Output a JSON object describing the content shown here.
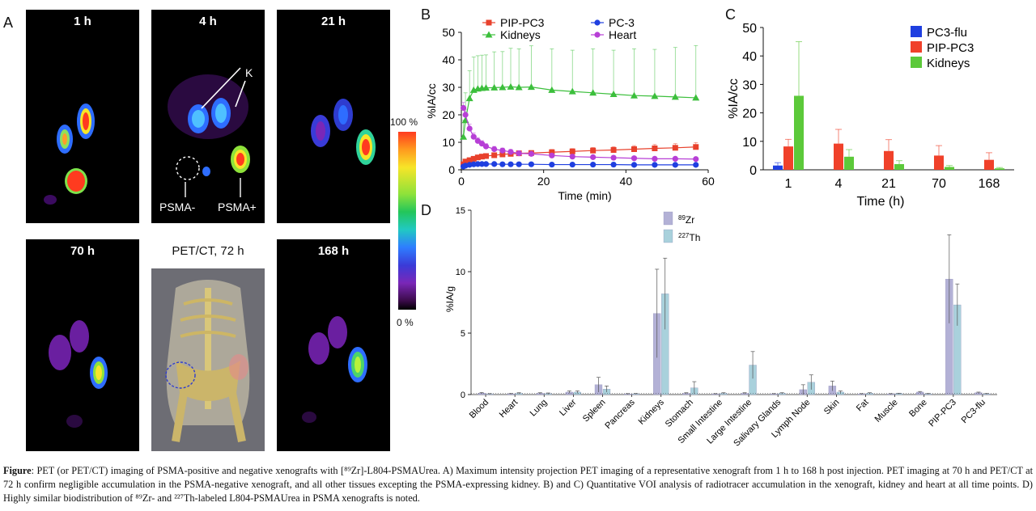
{
  "panel_letters": {
    "a": "A",
    "b": "B",
    "c": "C",
    "d": "D"
  },
  "panel_a": {
    "tiles": [
      "1 h",
      "4 h",
      "21 h",
      "70 h",
      "PET/CT, 72 h",
      "168 h"
    ],
    "annotations": {
      "kidney": "K",
      "psma_neg": "PSMA-",
      "psma_pos": "PSMA+"
    },
    "colorbar": {
      "top": "100 %",
      "bottom": "0 %"
    }
  },
  "chart_data": [
    {
      "id": "B",
      "type": "line",
      "xlabel": "Time (min)",
      "ylabel": "%IA/cc",
      "xlim": [
        0,
        60
      ],
      "ylim": [
        0,
        50
      ],
      "xticks": [
        0,
        20,
        40,
        60
      ],
      "yticks": [
        0,
        10,
        20,
        30,
        40,
        50
      ],
      "legend_position": "top",
      "series": [
        {
          "name": "PIP-PC3",
          "color": "#e8412c",
          "marker": "square",
          "x": [
            0.5,
            1,
            2,
            3,
            4,
            5,
            6,
            8,
            10,
            12,
            14,
            17,
            22,
            27,
            32,
            37,
            42,
            47,
            52,
            57
          ],
          "y": [
            2.0,
            3.0,
            3.5,
            4.0,
            4.5,
            4.8,
            5.0,
            5.3,
            5.6,
            5.8,
            6.0,
            6.1,
            6.4,
            6.7,
            7.0,
            7.2,
            7.5,
            7.8,
            8.0,
            8.3
          ],
          "err": [
            0.3,
            0.4,
            0.5,
            0.5,
            0.6,
            0.6,
            0.6,
            0.7,
            0.7,
            0.8,
            0.8,
            0.9,
            1.0,
            1.0,
            1.1,
            1.2,
            1.3,
            1.4,
            1.5,
            1.6
          ]
        },
        {
          "name": "PC-3",
          "color": "#1f3fe0",
          "marker": "circle",
          "x": [
            0.5,
            1,
            2,
            3,
            4,
            5,
            6,
            8,
            10,
            12,
            14,
            17,
            22,
            27,
            32,
            37,
            42,
            47,
            52,
            57
          ],
          "y": [
            1.2,
            1.5,
            1.8,
            2.0,
            2.1,
            2.1,
            2.1,
            2.1,
            2.0,
            2.0,
            2.0,
            2.0,
            1.9,
            1.9,
            1.9,
            1.9,
            1.8,
            1.8,
            1.8,
            1.8
          ],
          "err": [
            0.1,
            0.1,
            0.1,
            0.2,
            0.2,
            0.2,
            0.2,
            0.2,
            0.2,
            0.2,
            0.2,
            0.2,
            0.2,
            0.2,
            0.2,
            0.2,
            0.2,
            0.2,
            0.2,
            0.2
          ]
        },
        {
          "name": "Kidneys",
          "color": "#3cbf3c",
          "marker": "triangle",
          "x": [
            0.5,
            1,
            2,
            3,
            4,
            5,
            6,
            8,
            10,
            12,
            14,
            17,
            22,
            27,
            32,
            37,
            42,
            47,
            52,
            57
          ],
          "y": [
            12,
            18,
            26,
            29,
            29.5,
            29.7,
            29.8,
            29.9,
            30,
            30.2,
            30,
            30.1,
            29,
            28.5,
            28,
            27.5,
            27,
            26.8,
            26.5,
            26.2
          ],
          "err": [
            6,
            10,
            10,
            12,
            12,
            12,
            12,
            13,
            13,
            14,
            14,
            15,
            15,
            15,
            16,
            16,
            17,
            17,
            18,
            19
          ]
        },
        {
          "name": "Heart",
          "color": "#b73fd6",
          "marker": "circle",
          "x": [
            0.5,
            1,
            2,
            3,
            4,
            5,
            6,
            8,
            10,
            12,
            14,
            17,
            22,
            27,
            32,
            37,
            42,
            47,
            52,
            57
          ],
          "y": [
            22.5,
            20,
            15,
            12,
            10.5,
            9.5,
            8.5,
            7.5,
            7.0,
            6.5,
            6.0,
            5.8,
            5.2,
            4.8,
            4.6,
            4.4,
            4.2,
            4.0,
            4.0,
            3.9
          ],
          "err": [
            2.0,
            2.0,
            1.6,
            1.4,
            1.2,
            1.1,
            1.0,
            1.0,
            0.9,
            0.9,
            0.9,
            0.8,
            0.8,
            0.8,
            0.7,
            0.7,
            0.7,
            0.7,
            0.7,
            0.7
          ]
        }
      ]
    },
    {
      "id": "C",
      "type": "bar",
      "xlabel": "Time (h)",
      "ylabel": "%IA/cc",
      "ylim": [
        0,
        50
      ],
      "yticks": [
        0,
        10,
        20,
        30,
        40,
        50
      ],
      "categories": [
        "1",
        "4",
        "21",
        "70",
        "168"
      ],
      "legend_position": "top-right",
      "series": [
        {
          "name": "PC3-flu",
          "color": "#1f3fe0",
          "values": [
            1.5,
            null,
            null,
            null,
            null
          ],
          "err": [
            1.0,
            null,
            null,
            null,
            null
          ]
        },
        {
          "name": "PIP-PC3",
          "color": "#f0412a",
          "values": [
            8.2,
            9.2,
            6.6,
            5.0,
            3.5
          ],
          "err": [
            2.5,
            5.0,
            4.0,
            3.5,
            2.5
          ]
        },
        {
          "name": "Kidneys",
          "color": "#5cc93a",
          "values": [
            26.0,
            4.6,
            2.0,
            1.0,
            0.5
          ],
          "err": [
            19.0,
            2.5,
            1.2,
            0.5,
            0.3
          ]
        }
      ]
    },
    {
      "id": "D",
      "type": "bar",
      "xlabel": "",
      "ylabel": "%IA/g",
      "ylim": [
        0,
        15
      ],
      "yticks": [
        0,
        5,
        10,
        15
      ],
      "categories": [
        "Blood",
        "Heart",
        "Lung",
        "Liver",
        "Spleen",
        "Pancreas",
        "Kidneys",
        "Stomach",
        "Small Intestine",
        "Large Intestine",
        "Salivary Glands",
        "Lymph Node",
        "Skin",
        "Fat",
        "Muscle",
        "Bone",
        "PIP-PC3",
        "PC3-flu"
      ],
      "legend_position": "top-center",
      "series": [
        {
          "name": "89Zr",
          "label_sup": "89",
          "label_base": "Zr",
          "color": "#b3b1d6",
          "values": [
            0.12,
            0.06,
            0.1,
            0.2,
            0.8,
            0.05,
            6.6,
            0.1,
            0.05,
            0.1,
            0.05,
            0.4,
            0.7,
            0.05,
            0.05,
            0.2,
            9.4,
            0.15
          ],
          "err": [
            0.05,
            0.03,
            0.05,
            0.1,
            0.6,
            0.03,
            3.6,
            0.05,
            0.03,
            0.05,
            0.03,
            0.4,
            0.4,
            0.03,
            0.03,
            0.05,
            3.6,
            0.05
          ]
        },
        {
          "name": "227Th",
          "label_sup": "227",
          "label_base": "Th",
          "color": "#a9d1dc",
          "values": [
            0.05,
            0.1,
            0.08,
            0.2,
            0.45,
            0.06,
            8.2,
            0.55,
            0.1,
            2.4,
            0.1,
            1.0,
            0.2,
            0.1,
            0.08,
            0.06,
            7.3,
            0.06
          ],
          "err": [
            0.03,
            0.05,
            0.05,
            0.1,
            0.25,
            0.03,
            2.9,
            0.5,
            0.05,
            1.1,
            0.05,
            0.6,
            0.1,
            0.05,
            0.03,
            0.03,
            1.7,
            0.03
          ]
        }
      ]
    }
  ],
  "caption": {
    "lead": "Figure",
    "text": ": PET (or PET/CT) imaging of PSMA-positive and negative xenografts with [⁸⁹Zr]-L804-PSMAUrea. A) Maximum intensity projection PET imaging of a representative xenograft from 1 h to 168 h post injection. PET imaging at 70 h and PET/CT at 72 h confirm negligible accumulation in the PSMA-negative xenograft, and all other tissues excepting the PSMA-expressing kidney. B) and C) Quantitative VOI analysis of radiotracer accumulation in the xenograft, kidney and heart at all time points. D) Highly similar biodistribution of ⁸⁹Zr- and ²²⁷Th-labeled L804-PSMAUrea in PSMA xenografts is noted."
  }
}
